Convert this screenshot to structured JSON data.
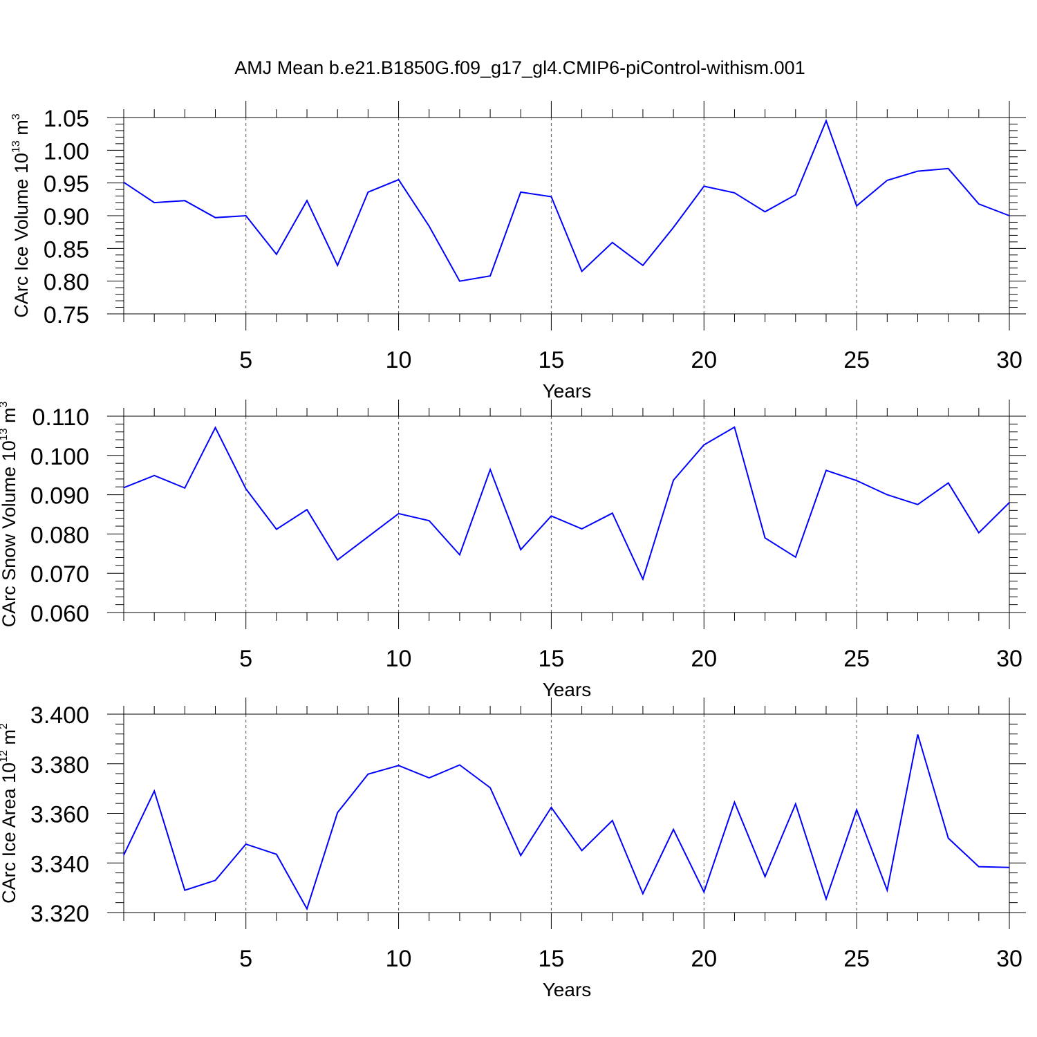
{
  "title": "AMJ Mean b.e21.B1850G.f09_g17_gl4.CMIP6-piControl-withism.001",
  "colors": {
    "line": "#0000ff",
    "grid": "#555555"
  },
  "chart_data": [
    {
      "type": "line",
      "title": "AMJ Mean b.e21.B1850G.f09_g17_gl4.CMIP6-piControl-withism.001",
      "xlabel": "Years",
      "ylabel_main": "CArc Ice Volume 10",
      "ylabel_exp": "13",
      "ylabel_unit": "m",
      "ylabel_unit_exp": "3",
      "xlim": [
        1,
        30
      ],
      "ylim": [
        0.75,
        1.05
      ],
      "xticks": [
        5,
        10,
        15,
        20,
        25,
        30
      ],
      "yticks": [
        0.75,
        0.8,
        0.85,
        0.9,
        0.95,
        1.0,
        1.05
      ],
      "ytick_labels": [
        "0.75",
        "0.80",
        "0.85",
        "0.90",
        "0.95",
        "1.00",
        "1.05"
      ],
      "y_minor_step": 0.01,
      "grid_x": true,
      "x": [
        1,
        2,
        3,
        4,
        5,
        6,
        7,
        8,
        9,
        10,
        11,
        12,
        13,
        14,
        15,
        16,
        17,
        18,
        19,
        20,
        21,
        22,
        23,
        24,
        25,
        26,
        27,
        28,
        29,
        30
      ],
      "values": [
        0.951,
        0.92,
        0.923,
        0.897,
        0.9,
        0.841,
        0.923,
        0.824,
        0.936,
        0.955,
        0.884,
        0.8,
        0.808,
        0.936,
        0.929,
        0.815,
        0.859,
        0.824,
        0.882,
        0.945,
        0.935,
        0.906,
        0.932,
        1.045,
        0.915,
        0.954,
        0.968,
        0.972,
        0.918,
        0.9
      ]
    },
    {
      "type": "line",
      "xlabel": "Years",
      "ylabel_main": "CArc Snow Volume 10",
      "ylabel_exp": "13",
      "ylabel_unit": "m",
      "ylabel_unit_exp": "3",
      "xlim": [
        1,
        30
      ],
      "ylim": [
        0.06,
        0.11
      ],
      "xticks": [
        5,
        10,
        15,
        20,
        25,
        30
      ],
      "yticks": [
        0.06,
        0.07,
        0.08,
        0.09,
        0.1,
        0.11
      ],
      "ytick_labels": [
        "0.060",
        "0.070",
        "0.080",
        "0.090",
        "0.100",
        "0.110"
      ],
      "y_minor_step": 0.002,
      "grid_x": true,
      "x": [
        1,
        2,
        3,
        4,
        5,
        6,
        7,
        8,
        9,
        10,
        11,
        12,
        13,
        14,
        15,
        16,
        17,
        18,
        19,
        20,
        21,
        22,
        23,
        24,
        25,
        26,
        27,
        28,
        29,
        30
      ],
      "values": [
        0.0918,
        0.0949,
        0.0917,
        0.1071,
        0.0915,
        0.0812,
        0.0862,
        0.0734,
        0.0793,
        0.0852,
        0.0834,
        0.0747,
        0.0964,
        0.076,
        0.0846,
        0.0813,
        0.0853,
        0.0685,
        0.0937,
        0.1027,
        0.1072,
        0.079,
        0.0741,
        0.0962,
        0.0936,
        0.09,
        0.0875,
        0.093,
        0.0803,
        0.088
      ]
    },
    {
      "type": "line",
      "xlabel": "Years",
      "ylabel_main": "CArc Ice Area 10",
      "ylabel_exp": "12",
      "ylabel_unit": "m",
      "ylabel_unit_exp": "2",
      "xlim": [
        1,
        30
      ],
      "ylim": [
        3.32,
        3.4
      ],
      "xticks": [
        5,
        10,
        15,
        20,
        25,
        30
      ],
      "yticks": [
        3.32,
        3.34,
        3.36,
        3.38,
        3.4
      ],
      "ytick_labels": [
        "3.320",
        "3.340",
        "3.360",
        "3.380",
        "3.400"
      ],
      "y_minor_step": 0.004,
      "grid_x": true,
      "x": [
        1,
        2,
        3,
        4,
        5,
        6,
        7,
        8,
        9,
        10,
        11,
        12,
        13,
        14,
        15,
        16,
        17,
        18,
        19,
        20,
        21,
        22,
        23,
        24,
        25,
        26,
        27,
        28,
        29,
        30
      ],
      "values": [
        3.3432,
        3.369,
        3.329,
        3.333,
        3.3476,
        3.3435,
        3.3215,
        3.3603,
        3.3758,
        3.3793,
        3.3743,
        3.3795,
        3.3703,
        3.343,
        3.3624,
        3.345,
        3.3571,
        3.3276,
        3.3535,
        3.3283,
        3.3645,
        3.3345,
        3.3638,
        3.3255,
        3.3614,
        3.329,
        3.3918,
        3.35,
        3.3385,
        3.3382
      ]
    }
  ]
}
